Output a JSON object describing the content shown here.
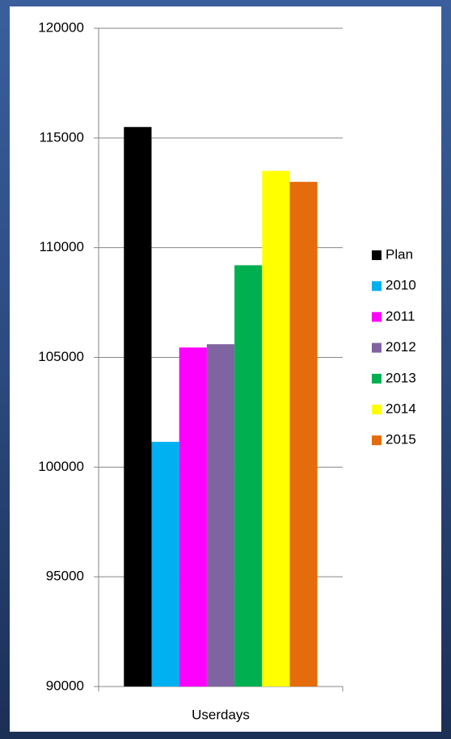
{
  "chart_data": {
    "type": "bar",
    "categories": [
      "Userdays"
    ],
    "series": [
      {
        "name": "Plan",
        "color": "#000000",
        "values": [
          115500
        ]
      },
      {
        "name": "2010",
        "color": "#00b0f0",
        "values": [
          101150
        ]
      },
      {
        "name": "2011",
        "color": "#ff00ff",
        "values": [
          105450
        ]
      },
      {
        "name": "2012",
        "color": "#8064a2",
        "values": [
          105600
        ]
      },
      {
        "name": "2013",
        "color": "#00b050",
        "values": [
          109200
        ]
      },
      {
        "name": "2014",
        "color": "#ffff00",
        "values": [
          113500
        ]
      },
      {
        "name": "2015",
        "color": "#e46c0a",
        "values": [
          113000
        ]
      }
    ],
    "ylim": [
      90000,
      120000
    ],
    "yticks": [
      90000,
      95000,
      100000,
      105000,
      110000,
      115000,
      120000
    ],
    "grid": true,
    "legend": "right"
  }
}
